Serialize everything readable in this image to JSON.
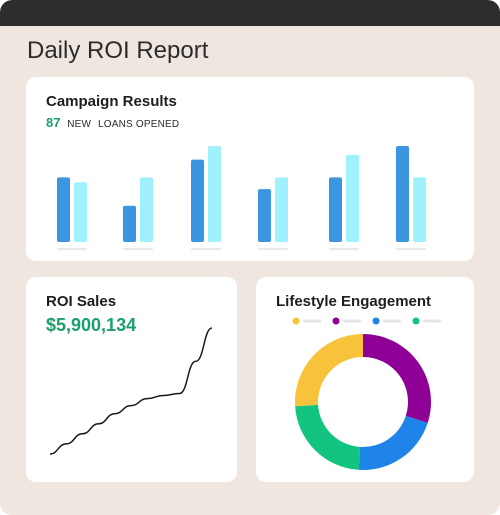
{
  "report": {
    "title": "Daily ROI Report"
  },
  "campaign": {
    "title": "Campaign Results",
    "stat_value": "87",
    "stat_label_1": "NEW",
    "stat_label_2": "LOANS OPENED"
  },
  "roi": {
    "title": "ROI Sales",
    "value": "$5,900,134"
  },
  "lifestyle": {
    "title": "Lifestyle Engagement",
    "legend_colors": [
      "#f8c33a",
      "#8e0096",
      "#1f84ea",
      "#12c47f"
    ]
  },
  "chart_data": [
    {
      "type": "bar",
      "categories": [
        "",
        "",
        "",
        "",
        "",
        ""
      ],
      "series": [
        {
          "values": [
            66,
            37,
            84,
            54,
            66,
            98
          ],
          "color": "#3b95df"
        },
        {
          "values": [
            61,
            66,
            98,
            66,
            89,
            66
          ],
          "color": "#9ff2fd"
        }
      ],
      "ylim": [
        0,
        100
      ],
      "grid": false
    },
    {
      "type": "line",
      "x": [
        0,
        1,
        2,
        3,
        4,
        5,
        6,
        7,
        8,
        9,
        10
      ],
      "y": [
        0,
        10,
        20,
        30,
        40,
        48,
        55,
        58,
        60,
        92,
        125
      ],
      "grid": false
    },
    {
      "type": "pie",
      "donut": true,
      "values": [
        30,
        21,
        23,
        26
      ],
      "colors": [
        "#8e0096",
        "#1f84ea",
        "#12c47f",
        "#f8c33a"
      ]
    }
  ]
}
